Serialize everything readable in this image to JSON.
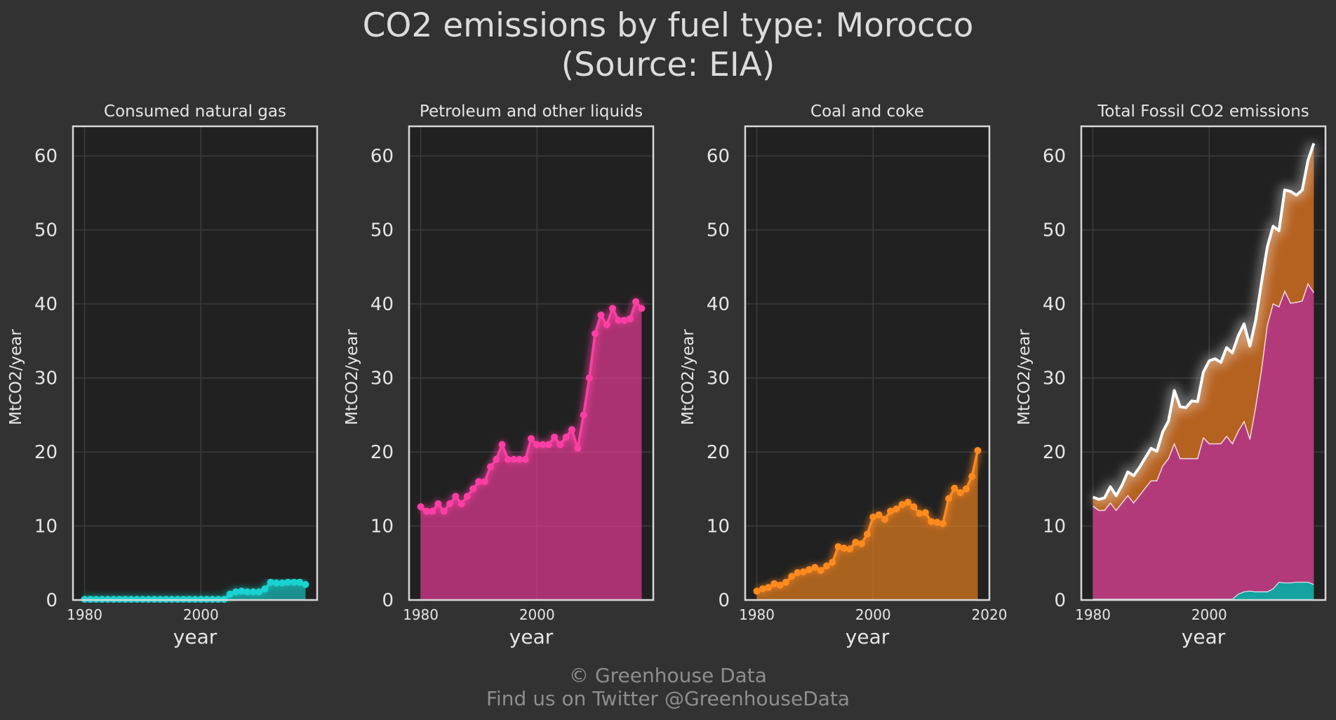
{
  "title_line1": "CO2 emissions by fuel type: Morocco",
  "title_line2": "(Source: EIA)",
  "credit_line1": "© Greenhouse Data",
  "credit_line2": "Find us on Twitter @GreenhouseData",
  "colors": {
    "background": "#323232",
    "plot_background": "#212121",
    "gas": "#19d3d1",
    "petroleum": "#ff3ea5",
    "coal": "#ff8a1e",
    "total": "#ffffff"
  },
  "chart_data": [
    {
      "type": "area",
      "title": "Consumed natural gas",
      "xlabel": "year",
      "ylabel": "MtCO2/year",
      "ylim": [
        0,
        64
      ],
      "yticks": [
        0,
        10,
        20,
        30,
        40,
        50,
        60
      ],
      "xticks": [
        1980,
        2000
      ],
      "xlim": [
        1978,
        2020
      ],
      "grid": true,
      "x": [
        1980,
        1981,
        1982,
        1983,
        1984,
        1985,
        1986,
        1987,
        1988,
        1989,
        1990,
        1991,
        1992,
        1993,
        1994,
        1995,
        1996,
        1997,
        1998,
        1999,
        2000,
        2001,
        2002,
        2003,
        2004,
        2005,
        2006,
        2007,
        2008,
        2009,
        2010,
        2011,
        2012,
        2013,
        2014,
        2015,
        2016,
        2017,
        2018
      ],
      "values": [
        0.1,
        0.1,
        0.1,
        0.1,
        0.1,
        0.1,
        0.1,
        0.1,
        0.1,
        0.1,
        0.1,
        0.1,
        0.1,
        0.1,
        0.1,
        0.1,
        0.1,
        0.1,
        0.1,
        0.1,
        0.1,
        0.1,
        0.1,
        0.1,
        0.1,
        0.8,
        1.1,
        1.2,
        1.1,
        1.1,
        1.1,
        1.5,
        2.4,
        2.3,
        2.3,
        2.4,
        2.4,
        2.4,
        2.1
      ]
    },
    {
      "type": "area",
      "title": "Petroleum and other liquids",
      "xlabel": "year",
      "ylabel": "MtCO2/year",
      "ylim": [
        0,
        64
      ],
      "yticks": [
        0,
        10,
        20,
        30,
        40,
        50,
        60
      ],
      "xticks": [
        1980,
        2000
      ],
      "xlim": [
        1978,
        2020
      ],
      "grid": true,
      "x": [
        1980,
        1981,
        1982,
        1983,
        1984,
        1985,
        1986,
        1987,
        1988,
        1989,
        1990,
        1991,
        1992,
        1993,
        1994,
        1995,
        1996,
        1997,
        1998,
        1999,
        2000,
        2001,
        2002,
        2003,
        2004,
        2005,
        2006,
        2007,
        2008,
        2009,
        2010,
        2011,
        2012,
        2013,
        2014,
        2015,
        2016,
        2017,
        2018
      ],
      "values": [
        12.6,
        12.0,
        12.0,
        13.0,
        12.0,
        13.0,
        14.0,
        13.0,
        14.0,
        15.0,
        16.0,
        16.0,
        18.0,
        19.0,
        21.0,
        19.0,
        19.0,
        19.0,
        19.0,
        21.8,
        21.0,
        21.0,
        21.0,
        22.0,
        21.0,
        22.0,
        23.0,
        20.5,
        25.0,
        30.0,
        36.0,
        38.5,
        37.2,
        39.4,
        37.8,
        37.8,
        38.0,
        40.3,
        39.4
      ]
    },
    {
      "type": "area",
      "title": "Coal and coke",
      "xlabel": "year",
      "ylabel": "MtCO2/year",
      "ylim": [
        0,
        64
      ],
      "yticks": [
        0,
        10,
        20,
        30,
        40,
        50,
        60
      ],
      "xticks": [
        1980,
        2000,
        2020
      ],
      "xlim": [
        1978,
        2020
      ],
      "grid": true,
      "x": [
        1980,
        1981,
        1982,
        1983,
        1984,
        1985,
        1986,
        1987,
        1988,
        1989,
        1990,
        1991,
        1992,
        1993,
        1994,
        1995,
        1996,
        1997,
        1998,
        1999,
        2000,
        2001,
        2002,
        2003,
        2004,
        2005,
        2006,
        2007,
        2008,
        2009,
        2010,
        2011,
        2012,
        2013,
        2014,
        2015,
        2016,
        2017,
        2018
      ],
      "values": [
        1.2,
        1.5,
        1.7,
        2.2,
        2.0,
        2.4,
        3.2,
        3.7,
        3.8,
        4.1,
        4.4,
        4.0,
        4.6,
        5.1,
        7.2,
        7.0,
        6.9,
        7.8,
        7.6,
        8.9,
        11.2,
        11.5,
        10.9,
        12.0,
        12.3,
        12.9,
        13.2,
        12.6,
        11.7,
        11.8,
        10.6,
        10.5,
        10.3,
        13.7,
        15.1,
        14.5,
        15.0,
        16.7,
        20.2
      ]
    },
    {
      "type": "area",
      "title": "Total Fossil CO2 emissions",
      "xlabel": "year",
      "ylabel": "MtCO2/year",
      "ylim": [
        0,
        64
      ],
      "yticks": [
        0,
        10,
        20,
        30,
        40,
        50,
        60
      ],
      "xticks": [
        1980,
        2000
      ],
      "xlim": [
        1978,
        2020
      ],
      "grid": true,
      "stacked": true,
      "x": [
        1980,
        1981,
        1982,
        1983,
        1984,
        1985,
        1986,
        1987,
        1988,
        1989,
        1990,
        1991,
        1992,
        1993,
        1994,
        1995,
        1996,
        1997,
        1998,
        1999,
        2000,
        2001,
        2002,
        2003,
        2004,
        2005,
        2006,
        2007,
        2008,
        2009,
        2010,
        2011,
        2012,
        2013,
        2014,
        2015,
        2016,
        2017,
        2018
      ],
      "stack_order": [
        "Consumed natural gas",
        "Petroleum and other liquids",
        "Coal and coke"
      ],
      "total": [
        13.9,
        13.6,
        13.8,
        15.3,
        14.1,
        15.5,
        17.3,
        16.8,
        17.9,
        19.2,
        20.5,
        20.1,
        22.7,
        24.2,
        28.3,
        26.1,
        26.0,
        26.9,
        26.8,
        30.8,
        32.3,
        32.6,
        32.1,
        34.1,
        33.4,
        35.7,
        37.3,
        34.3,
        37.8,
        42.9,
        47.7,
        50.5,
        49.9,
        55.4,
        55.2,
        54.7,
        55.4,
        59.4,
        61.7
      ]
    }
  ]
}
